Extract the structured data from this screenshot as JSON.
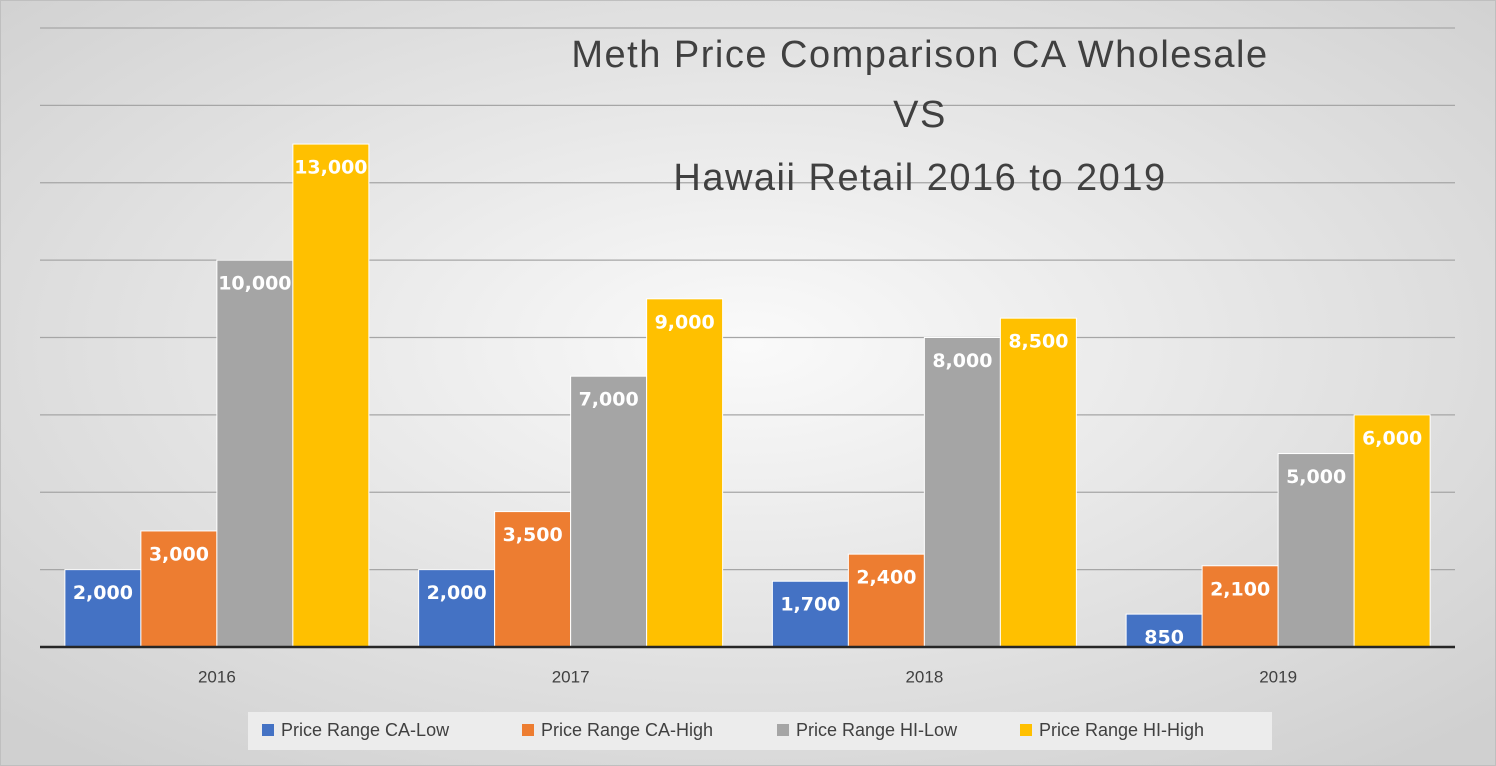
{
  "chart_data": {
    "type": "bar",
    "title": [
      "Meth Price Comparison CA Wholesale",
      "VS",
      "Hawaii Retail 2016 to 2019"
    ],
    "categories": [
      "2016",
      "2017",
      "2018",
      "2019"
    ],
    "series": [
      {
        "name": "Price Range CA-Low",
        "color": "#4472c4",
        "values": [
          2000,
          2000,
          1700,
          850
        ],
        "value_labels": [
          "2,000",
          "2,000",
          "1,700",
          "850"
        ]
      },
      {
        "name": "Price Range CA-High",
        "color": "#ed7d31",
        "values": [
          3000,
          3500,
          2400,
          2100
        ],
        "value_labels": [
          "3,000",
          "3,500",
          "2,400",
          "2,100"
        ]
      },
      {
        "name": "Price Range HI-Low",
        "color": "#a5a5a5",
        "values": [
          10000,
          7000,
          8000,
          5000
        ],
        "value_labels": [
          "10,000",
          "7,000",
          "8,000",
          "5,000"
        ]
      },
      {
        "name": "Price Range HI-High",
        "color": "#ffc000",
        "values": [
          13000,
          9000,
          8500,
          6000
        ],
        "value_labels": [
          "13,000",
          "9,000",
          "8,500",
          "6,000"
        ]
      }
    ],
    "ylim": [
      0,
      16000
    ],
    "yticks": [
      0,
      2000,
      4000,
      6000,
      8000,
      10000,
      12000,
      14000,
      16000
    ],
    "grid": true,
    "legend": "bottom"
  }
}
